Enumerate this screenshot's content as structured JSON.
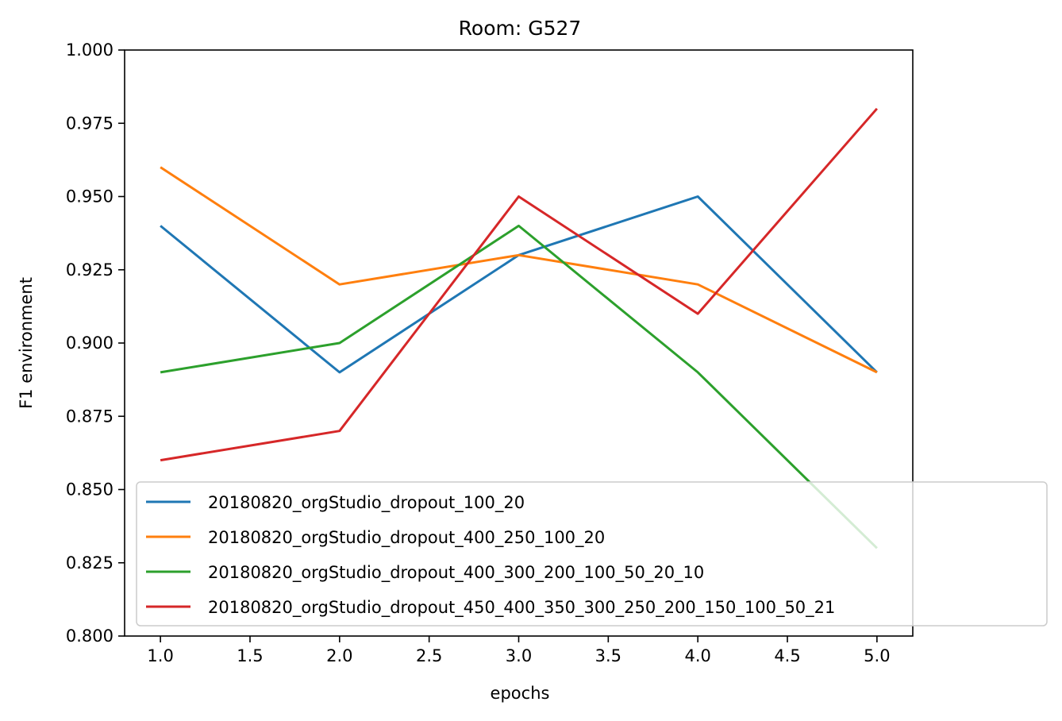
{
  "chart_data": {
    "type": "line",
    "title": "Room: G527",
    "xlabel": "epochs",
    "ylabel": "F1 environment",
    "xlim": [
      0.8,
      5.2
    ],
    "ylim": [
      0.8,
      1.0
    ],
    "xticks": [
      "1.0",
      "1.5",
      "2.0",
      "2.5",
      "3.0",
      "3.5",
      "4.0",
      "4.5",
      "5.0"
    ],
    "yticks": [
      "0.800",
      "0.825",
      "0.850",
      "0.875",
      "0.900",
      "0.925",
      "0.950",
      "0.975",
      "1.000"
    ],
    "grid": false,
    "legend_position": "lower-right",
    "x": [
      1,
      2,
      3,
      4,
      5
    ],
    "series": [
      {
        "name": "20180820_orgStudio_dropout_100_20",
        "color": "#1f77b4",
        "values": [
          0.94,
          0.89,
          0.93,
          0.95,
          0.89
        ]
      },
      {
        "name": "20180820_orgStudio_dropout_400_250_100_20",
        "color": "#ff7f0e",
        "values": [
          0.96,
          0.92,
          0.93,
          0.92,
          0.89
        ]
      },
      {
        "name": "20180820_orgStudio_dropout_400_300_200_100_50_20_10",
        "color": "#2ca02c",
        "values": [
          0.89,
          0.9,
          0.94,
          0.89,
          0.83
        ]
      },
      {
        "name": "20180820_orgStudio_dropout_450_400_350_300_250_200_150_100_50_21",
        "color": "#d62728",
        "values": [
          0.86,
          0.87,
          0.95,
          0.91,
          0.98
        ]
      }
    ]
  }
}
